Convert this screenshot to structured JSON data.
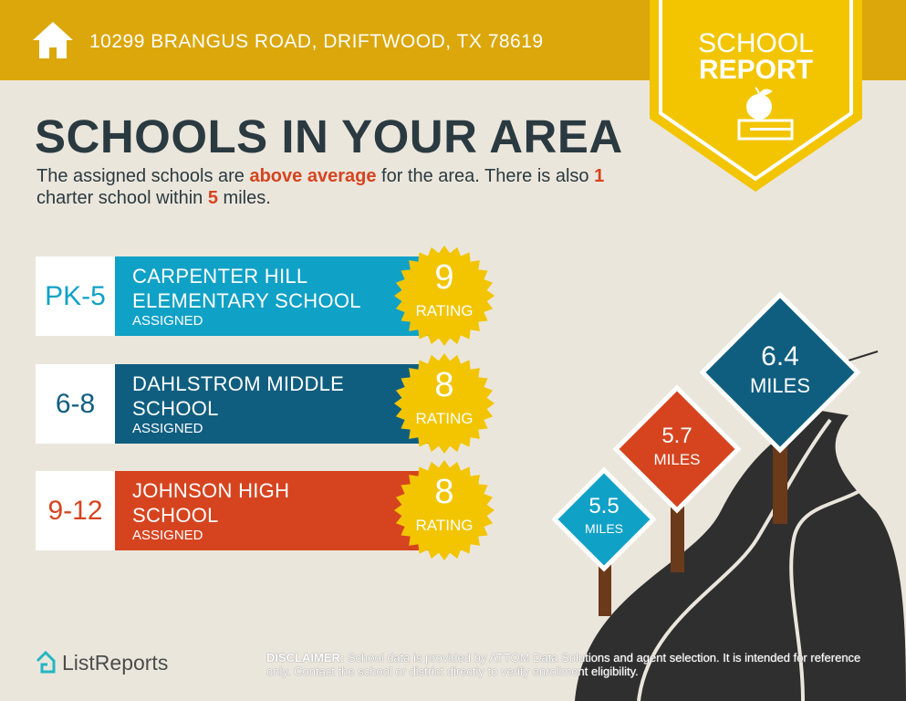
{
  "header": {
    "address": "10299 BRANGUS ROAD, DRIFTWOOD, TX 78619",
    "home_icon": "house-icon"
  },
  "badge": {
    "line1": "SCHOOL",
    "line2": "REPORT",
    "icon": "apple-on-book-icon"
  },
  "title": "SCHOOLS IN YOUR AREA",
  "subtitle": {
    "p1": "The assigned schools are ",
    "h1": "above average",
    "p2": " for the area. There is also ",
    "h2": "1",
    "p3": " charter school within ",
    "h3": "5",
    "p4": " miles."
  },
  "schools": [
    {
      "grade": "PK-5",
      "name1": "CARPENTER HILL",
      "name2": "ELEMENTARY SCHOOL",
      "tag": "ASSIGNED",
      "rating": "9",
      "rating_label": "RATING",
      "color": "#10a1c7"
    },
    {
      "grade": "6-8",
      "name1": "DAHLSTROM MIDDLE",
      "name2": "SCHOOL",
      "tag": "ASSIGNED",
      "rating": "8",
      "rating_label": "RATING",
      "color": "#0f5e80"
    },
    {
      "grade": "9-12",
      "name1": "JOHNSON HIGH",
      "name2": "SCHOOL",
      "tag": "ASSIGNED",
      "rating": "8",
      "rating_label": "RATING",
      "color": "#d6441f"
    }
  ],
  "signs": [
    {
      "value": "5.5",
      "unit": "MILES",
      "color": "#10a1c7"
    },
    {
      "value": "5.7",
      "unit": "MILES",
      "color": "#d6441f"
    },
    {
      "value": "6.4",
      "unit": "MILES",
      "color": "#0f5e80"
    }
  ],
  "footer": {
    "logo": "ListReports",
    "disclaimer_label": "DISCLAIMER:",
    "disclaimer": " School data is provided by ATTOM Data Solutions and agent selection. It is intended for reference only. Contact the school or district directly to verify enrollment eligibility."
  }
}
